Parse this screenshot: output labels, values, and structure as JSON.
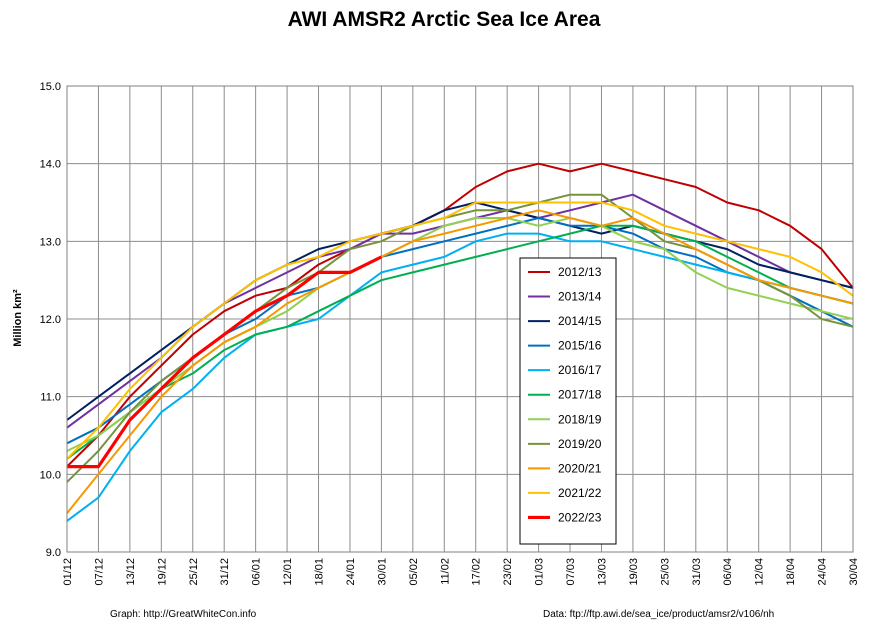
{
  "chart_data": {
    "type": "line",
    "title": "AWI AMSR2 Arctic Sea Ice Area",
    "ylabel": "Million km²",
    "xlabel": "",
    "ylim": [
      9.0,
      15.0
    ],
    "yticks": [
      "9.0",
      "10.0",
      "11.0",
      "12.0",
      "13.0",
      "14.0",
      "15.0"
    ],
    "xticks": [
      "01/12",
      "07/12",
      "13/12",
      "19/12",
      "25/12",
      "31/12",
      "06/01",
      "12/01",
      "18/01",
      "24/01",
      "30/01",
      "05/02",
      "11/02",
      "17/02",
      "23/02",
      "01/03",
      "07/03",
      "13/03",
      "19/03",
      "25/03",
      "31/03",
      "06/04",
      "12/04",
      "18/04",
      "24/04",
      "30/04"
    ],
    "grid": true,
    "legend_position": "center-right",
    "series": [
      {
        "name": "2012/13",
        "color": "#c00000",
        "values": [
          10.1,
          10.5,
          11.0,
          11.4,
          11.8,
          12.1,
          12.3,
          12.4,
          12.7,
          12.9,
          13.1,
          13.2,
          13.4,
          13.7,
          13.9,
          14.0,
          13.9,
          14.0,
          13.9,
          13.8,
          13.7,
          13.5,
          13.4,
          13.2,
          12.9,
          12.4
        ]
      },
      {
        "name": "2013/14",
        "color": "#7030a0",
        "values": [
          10.6,
          10.9,
          11.2,
          11.5,
          11.9,
          12.2,
          12.4,
          12.6,
          12.8,
          12.9,
          13.1,
          13.1,
          13.2,
          13.3,
          13.4,
          13.3,
          13.4,
          13.5,
          13.6,
          13.4,
          13.2,
          13.0,
          12.8,
          12.6,
          12.5,
          12.4
        ]
      },
      {
        "name": "2014/15",
        "color": "#002060",
        "values": [
          10.7,
          11.0,
          11.3,
          11.6,
          11.9,
          12.2,
          12.5,
          12.7,
          12.9,
          13.0,
          13.1,
          13.2,
          13.4,
          13.5,
          13.4,
          13.3,
          13.2,
          13.1,
          13.2,
          13.1,
          13.0,
          12.9,
          12.7,
          12.6,
          12.5,
          12.4
        ]
      },
      {
        "name": "2015/16",
        "color": "#0070c0",
        "values": [
          10.4,
          10.6,
          10.9,
          11.2,
          11.5,
          11.8,
          12.0,
          12.3,
          12.4,
          12.6,
          12.8,
          12.9,
          13.0,
          13.1,
          13.2,
          13.3,
          13.2,
          13.2,
          13.1,
          12.9,
          12.8,
          12.6,
          12.5,
          12.3,
          12.1,
          11.9
        ]
      },
      {
        "name": "2016/17",
        "color": "#00b0f0",
        "values": [
          9.4,
          9.7,
          10.3,
          10.8,
          11.1,
          11.5,
          11.8,
          11.9,
          12.0,
          12.3,
          12.6,
          12.7,
          12.8,
          13.0,
          13.1,
          13.1,
          13.0,
          13.0,
          12.9,
          12.8,
          12.7,
          12.6,
          12.5,
          12.4,
          12.3,
          12.2
        ]
      },
      {
        "name": "2017/18",
        "color": "#00b050",
        "values": [
          10.2,
          10.5,
          10.8,
          11.1,
          11.3,
          11.6,
          11.8,
          11.9,
          12.1,
          12.3,
          12.5,
          12.6,
          12.7,
          12.8,
          12.9,
          13.0,
          13.1,
          13.2,
          13.2,
          13.1,
          13.0,
          12.8,
          12.6,
          12.4,
          12.3,
          12.2
        ]
      },
      {
        "name": "2018/19",
        "color": "#92d050",
        "values": [
          10.3,
          10.5,
          10.8,
          11.1,
          11.4,
          11.7,
          11.9,
          12.1,
          12.4,
          12.6,
          12.8,
          13.0,
          13.2,
          13.3,
          13.3,
          13.2,
          13.3,
          13.2,
          13.0,
          12.9,
          12.6,
          12.4,
          12.3,
          12.2,
          12.1,
          12.0
        ]
      },
      {
        "name": "2019/20",
        "color": "#77933c",
        "values": [
          9.9,
          10.3,
          10.8,
          11.2,
          11.5,
          11.8,
          12.1,
          12.4,
          12.6,
          12.9,
          13.0,
          13.2,
          13.3,
          13.4,
          13.4,
          13.5,
          13.6,
          13.6,
          13.3,
          13.0,
          12.9,
          12.7,
          12.5,
          12.3,
          12.0,
          11.9
        ]
      },
      {
        "name": "2020/21",
        "color": "#f79800",
        "values": [
          9.5,
          10.0,
          10.5,
          11.0,
          11.4,
          11.7,
          11.9,
          12.2,
          12.4,
          12.6,
          12.8,
          13.0,
          13.1,
          13.2,
          13.3,
          13.4,
          13.3,
          13.2,
          13.3,
          13.1,
          12.9,
          12.7,
          12.5,
          12.4,
          12.3,
          12.2
        ]
      },
      {
        "name": "2021/22",
        "color": "#ffc000",
        "values": [
          10.2,
          10.6,
          11.1,
          11.5,
          11.9,
          12.2,
          12.5,
          12.7,
          12.8,
          13.0,
          13.1,
          13.2,
          13.3,
          13.5,
          13.5,
          13.5,
          13.5,
          13.5,
          13.4,
          13.2,
          13.1,
          13.0,
          12.9,
          12.8,
          12.6,
          12.3
        ]
      },
      {
        "name": "2022/23",
        "color": "#ff0000",
        "values": [
          10.1,
          10.1,
          10.7,
          11.1,
          11.5,
          11.8,
          12.1,
          12.3,
          12.6,
          12.6,
          12.8
        ]
      }
    ]
  },
  "footer": {
    "source_left": "Graph: http://GreatWhiteCon.info",
    "source_right": "Data: ftp://ftp.awi.de/sea_ice/product/amsr2/v106/nh"
  }
}
